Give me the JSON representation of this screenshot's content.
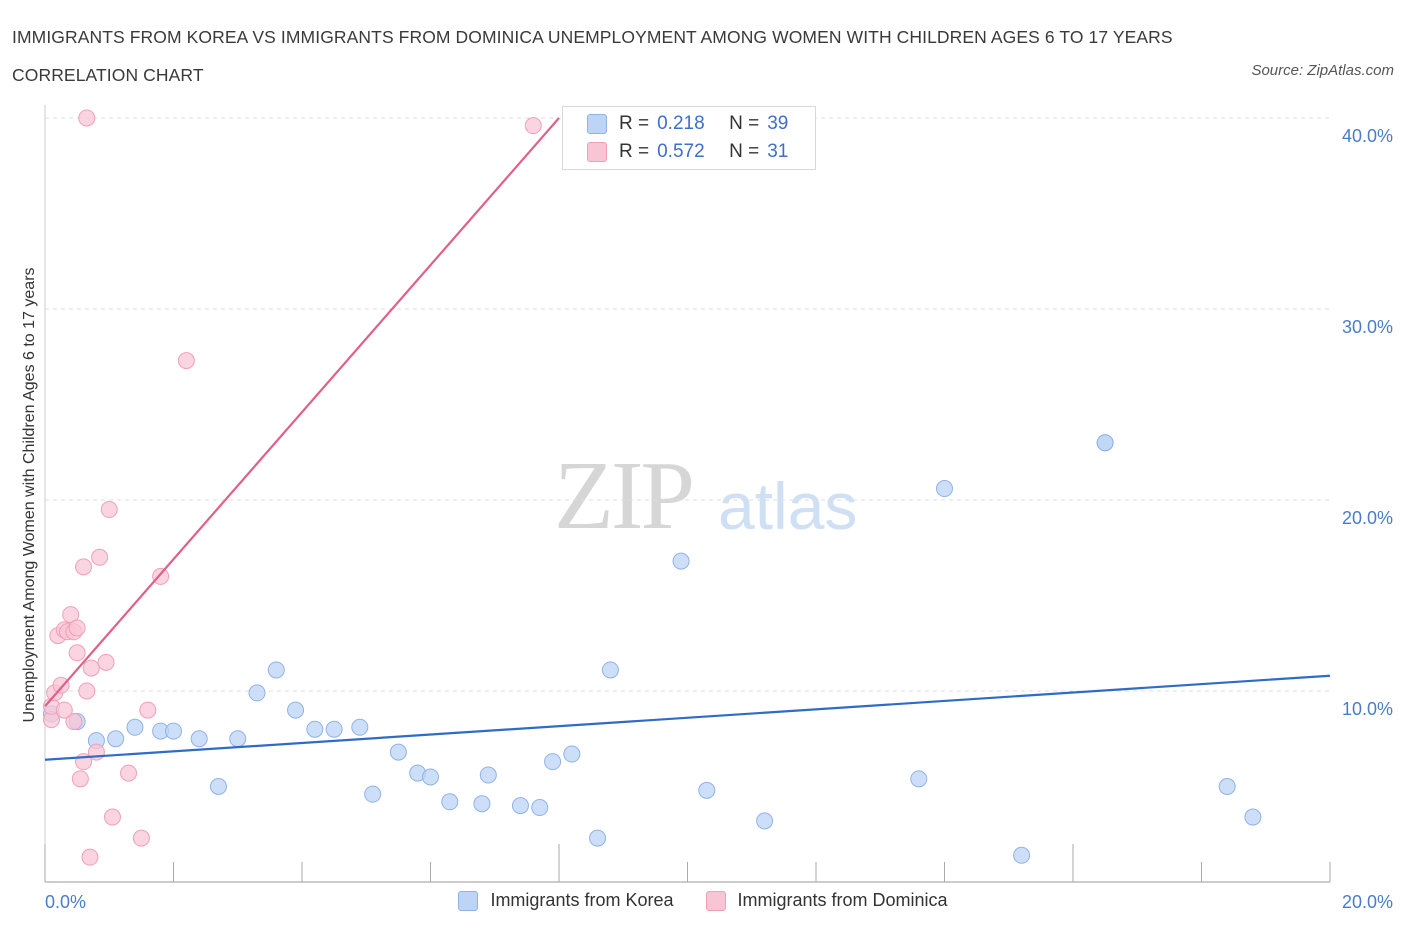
{
  "title": "IMMIGRANTS FROM KOREA VS IMMIGRANTS FROM DOMINICA UNEMPLOYMENT AMONG WOMEN WITH CHILDREN AGES 6 TO 17 YEARS CORRELATION CHART",
  "source": "Source: ZipAtlas.com",
  "watermark": {
    "zip": "ZIP",
    "atlas": "atlas"
  },
  "legend": {
    "korea": {
      "r_label": "R =",
      "r_value": "0.218",
      "n_label": "N =",
      "n_value": "39"
    },
    "dominica": {
      "r_label": "R =",
      "r_value": "0.572",
      "n_label": "N =",
      "n_value": "31"
    }
  },
  "colors": {
    "korea_fill": "#bcd4f5",
    "korea_stroke": "#8fb3e6",
    "korea_line": "#2f6cc6",
    "dominica_fill": "#f8c5d5",
    "dominica_stroke": "#f0a0b8",
    "dominica_line": "#e0608a",
    "axis_text": "#4a7cc9",
    "grid": "#dddddd"
  },
  "chart_data": {
    "type": "scatter",
    "title": "IMMIGRANTS FROM KOREA VS IMMIGRANTS FROM DOMINICA UNEMPLOYMENT AMONG WOMEN WITH CHILDREN AGES 6 TO 17 YEARS CORRELATION CHART",
    "xlabel": "",
    "ylabel": "Unemployment Among Women with Children Ages 6 to 17 years",
    "xlim": [
      0,
      20
    ],
    "ylim": [
      0,
      40
    ],
    "x_tick_labels": [
      "0.0%",
      "20.0%"
    ],
    "y_tick_labels": [
      "10.0%",
      "20.0%",
      "30.0%",
      "40.0%"
    ],
    "y_ticks": [
      10,
      20,
      30,
      40
    ],
    "legend_position": "top-center",
    "series": [
      {
        "name": "Immigrants from Korea",
        "r": 0.218,
        "n": 39,
        "trend": {
          "x": [
            0,
            20
          ],
          "y": [
            6.4,
            10.8
          ]
        },
        "points": [
          {
            "x": 0.1,
            "y": 8.8
          },
          {
            "x": 0.5,
            "y": 8.4
          },
          {
            "x": 0.8,
            "y": 7.4
          },
          {
            "x": 1.1,
            "y": 7.5
          },
          {
            "x": 1.4,
            "y": 8.1
          },
          {
            "x": 1.8,
            "y": 7.9
          },
          {
            "x": 2.0,
            "y": 7.9
          },
          {
            "x": 2.4,
            "y": 7.5
          },
          {
            "x": 2.7,
            "y": 5.0
          },
          {
            "x": 3.0,
            "y": 7.5
          },
          {
            "x": 3.3,
            "y": 9.9
          },
          {
            "x": 3.6,
            "y": 11.1
          },
          {
            "x": 3.9,
            "y": 9.0
          },
          {
            "x": 4.2,
            "y": 8.0
          },
          {
            "x": 4.5,
            "y": 8.0
          },
          {
            "x": 4.9,
            "y": 8.1
          },
          {
            "x": 5.1,
            "y": 4.6
          },
          {
            "x": 5.5,
            "y": 6.8
          },
          {
            "x": 5.8,
            "y": 5.7
          },
          {
            "x": 6.0,
            "y": 5.5
          },
          {
            "x": 6.3,
            "y": 4.2
          },
          {
            "x": 6.8,
            "y": 4.1
          },
          {
            "x": 6.9,
            "y": 5.6
          },
          {
            "x": 7.4,
            "y": 4.0
          },
          {
            "x": 7.7,
            "y": 3.9
          },
          {
            "x": 7.9,
            "y": 6.3
          },
          {
            "x": 8.2,
            "y": 6.7
          },
          {
            "x": 8.6,
            "y": 2.3
          },
          {
            "x": 8.8,
            "y": 11.1
          },
          {
            "x": 9.9,
            "y": 16.8
          },
          {
            "x": 10.3,
            "y": 4.8
          },
          {
            "x": 11.2,
            "y": 3.2
          },
          {
            "x": 13.6,
            "y": 5.4
          },
          {
            "x": 14.0,
            "y": 20.6
          },
          {
            "x": 15.2,
            "y": 1.4
          },
          {
            "x": 16.5,
            "y": 23.0
          },
          {
            "x": 16.5,
            "y": 23.0
          },
          {
            "x": 18.4,
            "y": 5.0
          },
          {
            "x": 18.8,
            "y": 3.4
          }
        ]
      },
      {
        "name": "Immigrants from Dominica",
        "r": 0.572,
        "n": 31,
        "trend": {
          "x": [
            0,
            8.0
          ],
          "y": [
            9.2,
            40.0
          ]
        },
        "points": [
          {
            "x": 0.1,
            "y": 8.5
          },
          {
            "x": 0.1,
            "y": 9.2
          },
          {
            "x": 0.15,
            "y": 9.9
          },
          {
            "x": 0.2,
            "y": 12.9
          },
          {
            "x": 0.25,
            "y": 10.3
          },
          {
            "x": 0.3,
            "y": 13.2
          },
          {
            "x": 0.35,
            "y": 13.1
          },
          {
            "x": 0.4,
            "y": 14.0
          },
          {
            "x": 0.45,
            "y": 13.1
          },
          {
            "x": 0.45,
            "y": 8.4
          },
          {
            "x": 0.5,
            "y": 13.3
          },
          {
            "x": 0.55,
            "y": 5.4
          },
          {
            "x": 0.6,
            "y": 6.3
          },
          {
            "x": 0.6,
            "y": 16.5
          },
          {
            "x": 0.65,
            "y": 10.0
          },
          {
            "x": 0.65,
            "y": 40.0
          },
          {
            "x": 0.7,
            "y": 1.3
          },
          {
            "x": 0.72,
            "y": 11.2
          },
          {
            "x": 0.8,
            "y": 6.8
          },
          {
            "x": 0.85,
            "y": 17.0
          },
          {
            "x": 0.95,
            "y": 11.5
          },
          {
            "x": 1.0,
            "y": 19.5
          },
          {
            "x": 1.05,
            "y": 3.4
          },
          {
            "x": 1.3,
            "y": 5.7
          },
          {
            "x": 1.5,
            "y": 2.3
          },
          {
            "x": 1.6,
            "y": 9.0
          },
          {
            "x": 1.8,
            "y": 16.0
          },
          {
            "x": 2.2,
            "y": 27.3
          },
          {
            "x": 7.6,
            "y": 39.6
          },
          {
            "x": 0.3,
            "y": 9.0
          },
          {
            "x": 0.5,
            "y": 12.0
          }
        ]
      }
    ]
  },
  "bottom_legend": {
    "korea": "Immigrants from Korea",
    "dominica": "Immigrants from Dominica"
  }
}
